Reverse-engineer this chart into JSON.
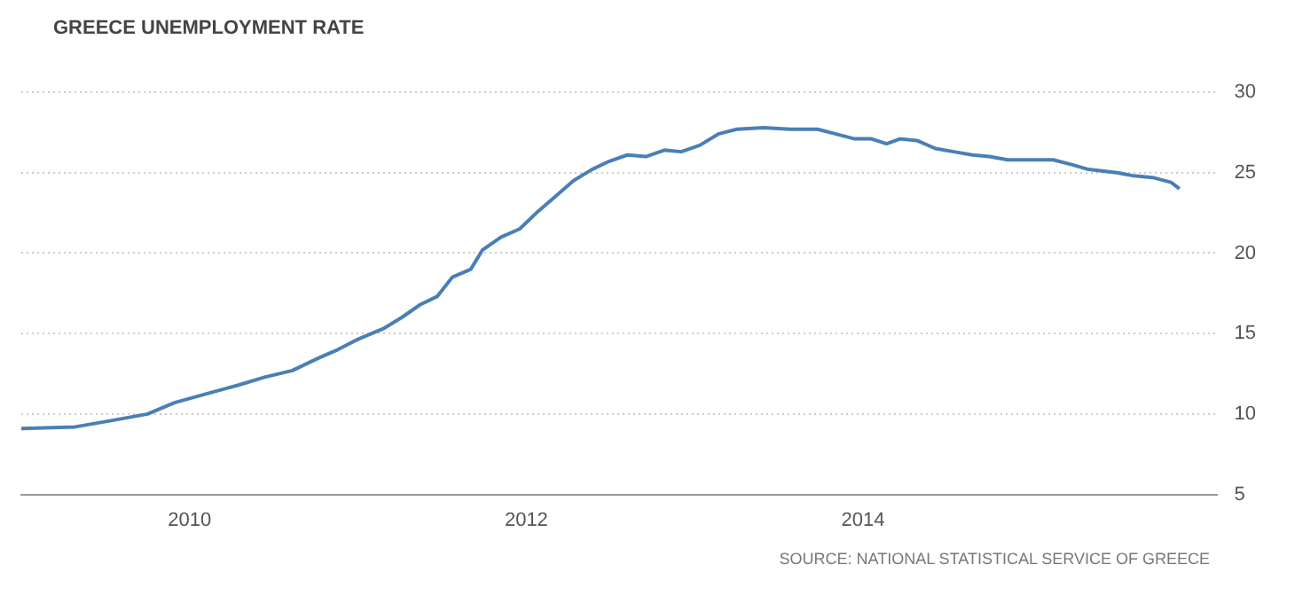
{
  "chart_data": {
    "type": "line",
    "title": "GREECE UNEMPLOYMENT RATE",
    "annotations": [
      "SOURCE: NATIONAL STATISTICAL SERVICE OF GREECE"
    ],
    "series": [
      {
        "color": "#4a7fb5",
        "x": [
          2009.0,
          2009.32,
          2009.54,
          2009.75,
          2009.91,
          2010.08,
          2010.29,
          2010.45,
          2010.61,
          2010.77,
          2010.88,
          2010.99,
          2011.15,
          2011.26,
          2011.37,
          2011.47,
          2011.56,
          2011.67,
          2011.74,
          2011.85,
          2011.96,
          2012.06,
          2012.17,
          2012.28,
          2012.39,
          2012.49,
          2012.6,
          2012.71,
          2012.82,
          2012.92,
          2013.03,
          2013.14,
          2013.25,
          2013.41,
          2013.57,
          2013.73,
          2013.84,
          2013.95,
          2014.05,
          2014.14,
          2014.22,
          2014.32,
          2014.43,
          2014.54,
          2014.65,
          2014.75,
          2014.86,
          2015.02,
          2015.13,
          2015.24,
          2015.34,
          2015.51,
          2015.61,
          2015.72,
          2015.83,
          2015.88
        ],
        "values": [
          9.1,
          9.2,
          9.6,
          10.0,
          10.7,
          11.2,
          11.8,
          12.3,
          12.7,
          13.5,
          14.0,
          14.6,
          15.3,
          16.0,
          16.8,
          17.3,
          18.5,
          19.0,
          20.2,
          21.0,
          21.5,
          22.5,
          23.5,
          24.5,
          25.2,
          25.7,
          26.1,
          26.0,
          26.4,
          26.3,
          26.7,
          27.4,
          27.7,
          27.8,
          27.7,
          27.7,
          27.4,
          27.1,
          27.1,
          26.8,
          27.1,
          27.0,
          26.5,
          26.3,
          26.1,
          26.0,
          25.8,
          25.8,
          25.8,
          25.5,
          25.2,
          25.0,
          24.8,
          24.7,
          24.4,
          24.0
        ]
      }
    ],
    "xlim": [
      2009.0,
      2016.1
    ],
    "xticks": [
      2010,
      2012,
      2014
    ],
    "ylim": [
      5,
      30
    ],
    "yticks": [
      5,
      10,
      15,
      20,
      25,
      30
    ],
    "grid": "y",
    "legend": false,
    "marker": "none",
    "line_style": "solid"
  }
}
